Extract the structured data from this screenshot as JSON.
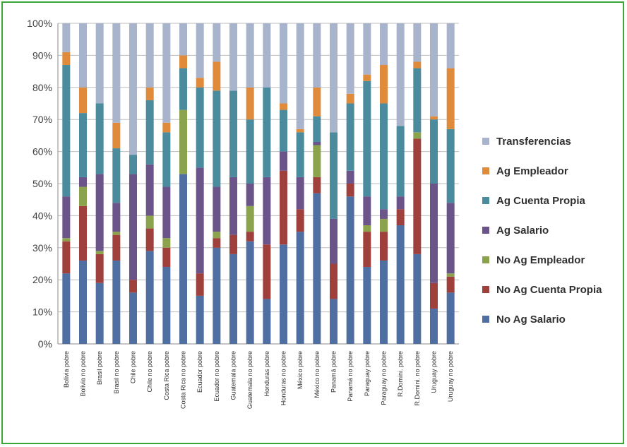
{
  "chart_data": {
    "type": "bar",
    "stacked": true,
    "percent": true,
    "ylim": [
      0,
      100
    ],
    "yticks": [
      "0%",
      "10%",
      "20%",
      "30%",
      "40%",
      "50%",
      "60%",
      "70%",
      "80%",
      "90%",
      "100%"
    ],
    "grid": true,
    "legend_position": "right",
    "categories": [
      "Bolivia pobre",
      "Bolivia no pobre",
      "Brasil pobre",
      "Brasil no pobre",
      "Chile pobre",
      "Chile no pobre",
      "Costa Rica pobre",
      "Costa Rica no pobre",
      "Ecuador pobre",
      "Ecuador no pobre",
      "Guatemala pobre",
      "Guatemala no pobre",
      "Honduras pobre",
      "Honduras no pobre",
      "México pobre",
      "México no pobre",
      "Panamá pobre",
      "Panamá no pobre",
      "Paraguay pobre",
      "Paraguay no pobre",
      "R.Domini. pobre",
      "R.Domini. no pobre",
      "Uruguay pobre",
      "Uruguay no pobre"
    ],
    "series": [
      {
        "name": "No Ag Salario",
        "color": "#4f6fa3",
        "values": [
          22,
          26,
          19,
          26,
          16,
          29,
          24,
          53,
          15,
          30,
          28,
          32,
          14,
          31,
          35,
          47,
          14,
          46,
          24,
          26,
          37,
          28,
          11,
          16
        ]
      },
      {
        "name": "No Ag Cuenta Propia",
        "color": "#a0403d",
        "values": [
          10,
          17,
          9,
          8,
          4,
          7,
          6,
          0,
          7,
          3,
          6,
          3,
          17,
          23,
          7,
          5,
          11,
          4,
          11,
          9,
          5,
          36,
          8,
          5
        ]
      },
      {
        "name": "No Ag Empleador",
        "color": "#8ca34d",
        "values": [
          1,
          6,
          1,
          1,
          0,
          4,
          3,
          20,
          0,
          2,
          0,
          8,
          0,
          0,
          0,
          10,
          0,
          0,
          2,
          4,
          0,
          2,
          0,
          1
        ]
      },
      {
        "name": "Ag Salario",
        "color": "#6a548a",
        "values": [
          13,
          3,
          24,
          9,
          33,
          16,
          16,
          0,
          33,
          14,
          18,
          7,
          21,
          6,
          10,
          1,
          14,
          4,
          9,
          3,
          4,
          0,
          31,
          22
        ]
      },
      {
        "name": "Ag Cuenta Propia",
        "color": "#4a8c9e",
        "values": [
          41,
          20,
          22,
          17,
          6,
          20,
          17,
          13,
          25,
          30,
          27,
          20,
          28,
          13,
          14,
          8,
          27,
          21,
          36,
          33,
          22,
          20,
          20,
          23
        ]
      },
      {
        "name": "Ag Empleador",
        "color": "#e08a3c",
        "values": [
          4,
          8,
          0,
          8,
          0,
          4,
          3,
          4,
          3,
          9,
          0,
          10,
          0,
          2,
          1,
          9,
          0,
          3,
          2,
          12,
          0,
          2,
          1,
          19
        ]
      },
      {
        "name": "Transferencias",
        "color": "#a8b4cc",
        "values": [
          9,
          20,
          25,
          31,
          41,
          20,
          31,
          10,
          17,
          12,
          21,
          20,
          20,
          25,
          33,
          20,
          34,
          22,
          16,
          13,
          32,
          12,
          29,
          14
        ]
      }
    ]
  }
}
